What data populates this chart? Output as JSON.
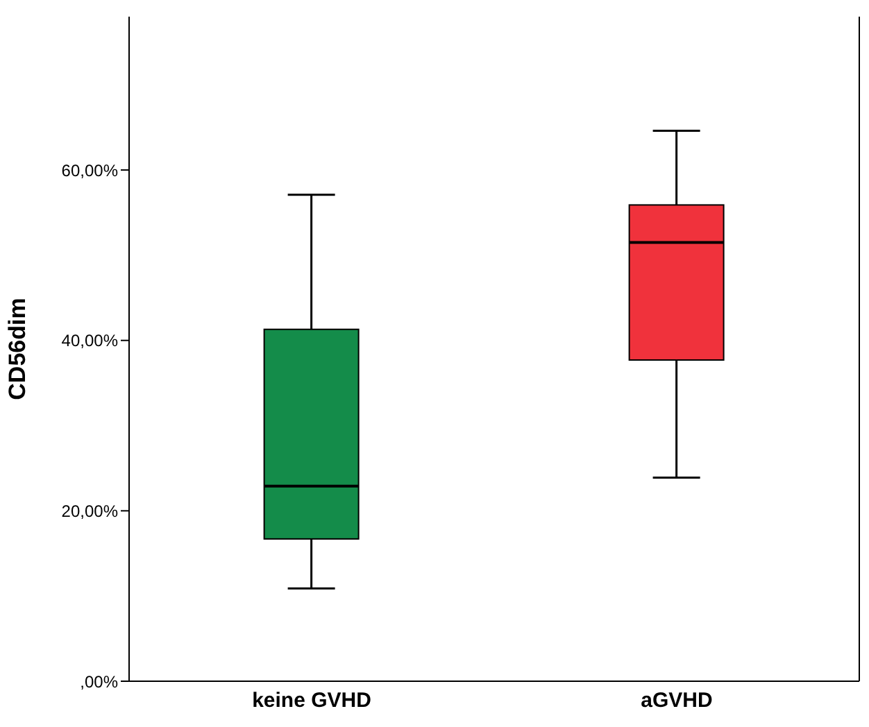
{
  "chart_data": {
    "type": "box",
    "ylabel": "CD56dim",
    "categories": [
      "keine GVHD",
      "aGVHD"
    ],
    "boxes": [
      {
        "low": 10.9,
        "q1": 16.7,
        "median": 22.9,
        "q3": 41.3,
        "high": 57.1
      },
      {
        "low": 23.9,
        "q1": 37.7,
        "median": 51.5,
        "q3": 55.9,
        "high": 64.6
      }
    ],
    "colors": [
      "#148c4a",
      "#f0323c"
    ],
    "ylim": [
      0,
      78
    ],
    "yticks": [
      {
        "value": 0,
        "label": ",00%"
      },
      {
        "value": 20,
        "label": "20,00%"
      },
      {
        "value": 40,
        "label": "40,00%"
      },
      {
        "value": 60,
        "label": "60,00%"
      }
    ],
    "grid": false
  }
}
